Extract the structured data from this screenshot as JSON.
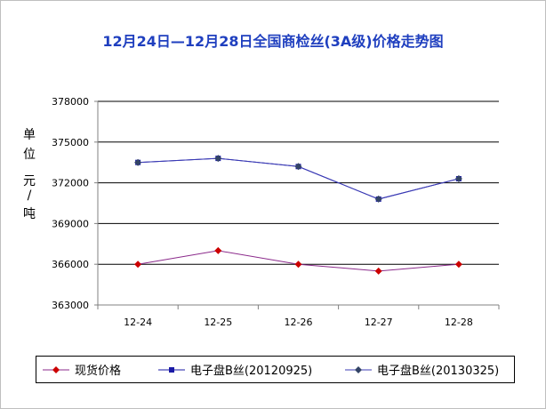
{
  "chart_data": {
    "type": "line",
    "title": "12月24日—12月28日全国商检丝(3A级)价格走势图",
    "categories": [
      "12-24",
      "12-25",
      "12-26",
      "12-27",
      "12-28"
    ],
    "ylim": [
      363000,
      378000
    ],
    "yticks": [
      363000,
      366000,
      369000,
      372000,
      375000,
      378000
    ],
    "ytick_labels": [
      "363000",
      "366000",
      "369000",
      "372000",
      "375000",
      "378000"
    ],
    "ylabel_parts": [
      "单",
      "位",
      "元",
      "/",
      "吨"
    ],
    "grid": true,
    "legend_position": "bottom",
    "series": [
      {
        "name": "现货价格",
        "color": "#cc0000",
        "line_color": "#8b2a8b",
        "marker": "diamond",
        "values": [
          366000,
          367000,
          366000,
          365500,
          366000
        ]
      },
      {
        "name": "电子盘B丝(20120925)",
        "color": "#1a1aa6",
        "line_color": "#1a1aa6",
        "marker": "square",
        "values": [
          373500,
          373800,
          373200,
          370800,
          372300
        ]
      },
      {
        "name": "电子盘B丝(20130325)",
        "color": "#334466",
        "line_color": "#3b3bb5",
        "marker": "diamond",
        "values": [
          373500,
          373800,
          373200,
          370800,
          372300
        ]
      }
    ]
  },
  "colors": {
    "title": "#1f3fbf",
    "grid": "#000000",
    "axis": "#808080",
    "frame": "#8c8c8c"
  }
}
